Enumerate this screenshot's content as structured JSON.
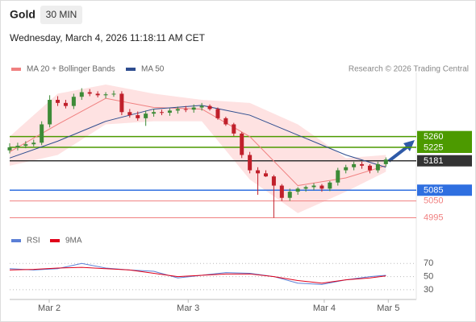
{
  "chart_data": {
    "type": "candlestick",
    "title": "Gold",
    "timeframe": "30 MIN",
    "subtitle": "Wednesday, March 4, 2026 11:18:11 AM CET",
    "credit": "Research © 2026 Trading Central",
    "xlim": [
      0,
      50.8
    ],
    "xticks": [
      {
        "value": 4.94,
        "label": "Mar 2"
      },
      {
        "value": 22.3,
        "label": "Mar 3"
      },
      {
        "value": 39.3,
        "label": "Mar 4"
      },
      {
        "value": 47.3,
        "label": "Mar 5"
      }
    ],
    "ylim": [
      4970,
      5480
    ],
    "up_color": "#3d8b37",
    "down_color": "#c0202b",
    "open": [
      5215,
      5225,
      5230,
      5235,
      5240,
      5300,
      5380,
      5370,
      5360,
      5390,
      5405,
      5400,
      5395,
      5398,
      5400,
      5340,
      5330,
      5320,
      5335,
      5340,
      5338,
      5345,
      5350,
      5348,
      5355,
      5360,
      5350,
      5320,
      5300,
      5270,
      5200,
      5150,
      5140,
      5130,
      5100,
      5060,
      5080,
      5090,
      5095,
      5100,
      5090,
      5110,
      5150,
      5160,
      5170,
      5165,
      5150,
      5170
    ],
    "high": [
      5238,
      5240,
      5245,
      5250,
      5310,
      5395,
      5392,
      5380,
      5400,
      5418,
      5415,
      5408,
      5405,
      5410,
      5408,
      5350,
      5342,
      5345,
      5350,
      5348,
      5352,
      5358,
      5360,
      5365,
      5370,
      5365,
      5355,
      5325,
      5305,
      5275,
      5210,
      5160,
      5150,
      5135,
      5105,
      5090,
      5095,
      5100,
      5108,
      5105,
      5115,
      5158,
      5168,
      5178,
      5178,
      5170,
      5178,
      5192
    ],
    "low": [
      5205,
      5215,
      5222,
      5228,
      5232,
      5290,
      5360,
      5352,
      5350,
      5380,
      5392,
      5388,
      5385,
      5390,
      5330,
      5322,
      5312,
      5295,
      5325,
      5330,
      5328,
      5335,
      5340,
      5338,
      5345,
      5345,
      5315,
      5295,
      5262,
      5190,
      5140,
      5070,
      5128,
      4995,
      5050,
      5050,
      5070,
      5080,
      5085,
      5080,
      5082,
      5100,
      5140,
      5150,
      5155,
      5140,
      5142,
      5162
    ],
    "close": [
      5225,
      5230,
      5235,
      5240,
      5300,
      5380,
      5370,
      5360,
      5390,
      5405,
      5400,
      5395,
      5398,
      5400,
      5340,
      5330,
      5320,
      5335,
      5340,
      5338,
      5345,
      5350,
      5348,
      5355,
      5360,
      5350,
      5320,
      5300,
      5270,
      5200,
      5150,
      5140,
      5130,
      5100,
      5060,
      5080,
      5090,
      5095,
      5100,
      5090,
      5110,
      5150,
      5160,
      5170,
      5165,
      5150,
      5170,
      5185
    ],
    "band_x": [
      0,
      6,
      12,
      18,
      24,
      30,
      36,
      42,
      47
    ],
    "band_upper": [
      5260,
      5400,
      5430,
      5400,
      5380,
      5370,
      5300,
      5190,
      5200
    ],
    "band_lower": [
      5165,
      5200,
      5300,
      5310,
      5310,
      5120,
      5010,
      5080,
      5145
    ],
    "band_color": "#fdd5d5",
    "series": [
      {
        "name": "MA 20 + Bollinger Bands",
        "color": "#f08080",
        "x": [
          0,
          6,
          12,
          18,
          24,
          30,
          36,
          42,
          47
        ],
        "values": [
          5210,
          5300,
          5385,
          5355,
          5350,
          5260,
          5100,
          5125,
          5165
        ]
      },
      {
        "name": "MA 50",
        "color": "#2e4d8f",
        "x": [
          0,
          6,
          12,
          18,
          24,
          30,
          36,
          42,
          47
        ],
        "values": [
          5190,
          5245,
          5310,
          5350,
          5362,
          5330,
          5265,
          5200,
          5160
        ]
      }
    ],
    "levels": [
      {
        "value": 5260,
        "color": "#4c9a00",
        "style": "box"
      },
      {
        "value": 5225,
        "color": "#4c9a00",
        "style": "box"
      },
      {
        "value": 5181,
        "color": "#333333",
        "style": "box"
      },
      {
        "value": 5085,
        "color": "#2f6fe0",
        "style": "box"
      },
      {
        "value": 5050,
        "color": "#f08080",
        "style": "text"
      },
      {
        "value": 4995,
        "color": "#f08080",
        "style": "text"
      }
    ],
    "rsi": {
      "ylim": [
        20,
        90
      ],
      "yticks": [
        70,
        50,
        30
      ],
      "series": [
        {
          "name": "RSI",
          "color": "#5b7fd6",
          "x": [
            0,
            3,
            6,
            9,
            12,
            15,
            18,
            21,
            24,
            27,
            30,
            33,
            36,
            39,
            42,
            45,
            47
          ],
          "values": [
            62,
            60,
            62,
            70,
            63,
            60,
            58,
            48,
            52,
            56,
            55,
            50,
            40,
            38,
            45,
            50,
            52
          ]
        },
        {
          "name": "9MA",
          "color": "#e0001a",
          "x": [
            0,
            3,
            6,
            9,
            12,
            15,
            18,
            21,
            24,
            27,
            30,
            33,
            36,
            39,
            42,
            45,
            47
          ],
          "values": [
            60,
            61,
            63,
            64,
            62,
            60,
            55,
            50,
            52,
            54,
            54,
            50,
            44,
            40,
            45,
            48,
            51
          ]
        }
      ]
    }
  }
}
